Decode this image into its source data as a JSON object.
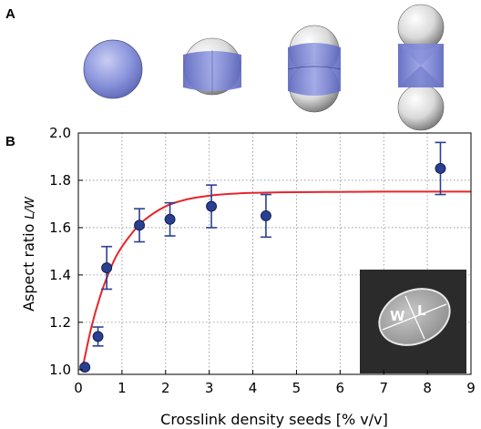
{
  "panels": {
    "top_label": "A",
    "bottom_label": "B"
  },
  "colors": {
    "marker": "#2a3f8f",
    "errorbar": "#2a3f8f",
    "fit_line": "#e8242b",
    "grid": "#8a8a8a",
    "sphere_blue": "#7a86d6",
    "sphere_white": "#e8e8e8"
  },
  "inset": {
    "label_w": "W",
    "label_l": "L"
  },
  "chart_data": {
    "type": "scatter",
    "title": "",
    "xlabel": "Crosslink density seeds [% v/v]",
    "ylabel": "Aspect ratio",
    "ylabel_italic": "L/W",
    "xlim": [
      0,
      9
    ],
    "ylim": [
      0.98,
      2.0
    ],
    "xticks": [
      "0",
      "1",
      "2",
      "3",
      "4",
      "5",
      "6",
      "7",
      "8",
      "9"
    ],
    "yticks": [
      "1.0",
      "1.2",
      "1.4",
      "1.6",
      "1.8",
      "2.0"
    ],
    "grid": true,
    "series": [
      {
        "kind": "points_with_errorbars",
        "points": [
          {
            "x": 0.15,
            "y": 1.01,
            "err": 0.0
          },
          {
            "x": 0.45,
            "y": 1.14,
            "err": 0.04
          },
          {
            "x": 0.65,
            "y": 1.43,
            "err": 0.09
          },
          {
            "x": 1.4,
            "y": 1.61,
            "err": 0.07
          },
          {
            "x": 2.1,
            "y": 1.635,
            "err": 0.07
          },
          {
            "x": 3.05,
            "y": 1.69,
            "err": 0.09
          },
          {
            "x": 4.3,
            "y": 1.65,
            "err": 0.09
          },
          {
            "x": 8.3,
            "y": 1.85,
            "err": 0.11
          }
        ]
      },
      {
        "kind": "fit_curve",
        "x": [
          0.1,
          0.3,
          0.5,
          0.7,
          0.9,
          1.2,
          1.5,
          2.0,
          2.5,
          3.0,
          3.5,
          4.0,
          5.0,
          6.0,
          7.0,
          8.0,
          9.0
        ],
        "y": [
          1.01,
          1.18,
          1.31,
          1.41,
          1.49,
          1.57,
          1.63,
          1.69,
          1.72,
          1.735,
          1.743,
          1.747,
          1.75,
          1.751,
          1.752,
          1.752,
          1.752
        ]
      }
    ]
  }
}
